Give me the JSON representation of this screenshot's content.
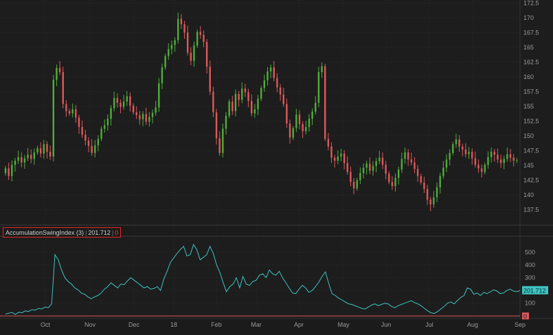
{
  "chart_data": [
    {
      "type": "candlestick",
      "title": "",
      "ylim": [
        135,
        173
      ],
      "yticks": [
        "137.5",
        "140",
        "142.5",
        "145",
        "147.5",
        "150",
        "152.5",
        "155",
        "157.5",
        "160",
        "162.5",
        "165",
        "167.5",
        "170",
        "172.5"
      ],
      "grid": true,
      "colors": {
        "up": "#4fae3a",
        "down": "#e0585b"
      },
      "close_series": [
        144.5,
        143.2,
        145.1,
        145.8,
        146.4,
        145.5,
        146.2,
        146.8,
        146.1,
        147.2,
        147.9,
        147.0,
        148.6,
        147.3,
        146.5,
        159.5,
        161.5,
        160.8,
        155.4,
        154.2,
        153.8,
        154.5,
        153.1,
        151.5,
        150.2,
        149.2,
        148.3,
        147.1,
        148.4,
        149.5,
        151.2,
        151.8,
        152.9,
        154.7,
        156.4,
        155.6,
        154.9,
        155.8,
        156.7,
        155.1,
        154.0,
        153.5,
        152.8,
        153.7,
        152.4,
        153.2,
        153.9,
        154.8,
        158.9,
        161.6,
        163.5,
        164.7,
        165.4,
        166.2,
        169.8,
        168.9,
        167.5,
        164.1,
        162.7,
        165.3,
        167.6,
        167.1,
        165.9,
        161.7,
        157.5,
        154.0,
        149.6,
        147.1,
        151.2,
        153.4,
        155.8,
        154.2,
        157.1,
        156.1,
        158.0,
        157.4,
        155.9,
        153.8,
        154.5,
        156.3,
        158.1,
        159.4,
        160.9,
        161.6,
        159.8,
        158.2,
        157.0,
        155.4,
        152.1,
        149.7,
        151.3,
        153.6,
        152.0,
        150.8,
        151.5,
        152.9,
        154.1,
        155.6,
        160.8,
        161.8,
        149.5,
        148.2,
        146.3,
        145.8,
        146.5,
        147.0,
        145.4,
        143.9,
        142.2,
        141.1,
        142.5,
        143.7,
        144.6,
        145.3,
        144.1,
        144.9,
        145.7,
        146.3,
        145.1,
        143.6,
        142.2,
        141.5,
        142.9,
        144.3,
        146.1,
        147.2,
        146.0,
        145.5,
        144.4,
        143.2,
        142.1,
        141.0,
        139.2,
        138.4,
        139.6,
        141.3,
        143.2,
        144.6,
        146.0,
        147.1,
        148.6,
        149.4,
        148.2,
        147.7,
        146.9,
        147.3,
        146.2,
        145.1,
        144.5,
        143.9,
        145.1,
        146.4,
        147.3,
        146.8,
        146.0,
        145.4,
        146.1,
        146.9,
        146.3,
        145.8,
        145.9
      ]
    },
    {
      "type": "line",
      "title": "AccumulationSwingIndex (3)",
      "ylim": [
        -20,
        620
      ],
      "yticks": [
        "100",
        "200",
        "300",
        "400",
        "500"
      ],
      "current_value": "201.712",
      "zero_line_label": "0",
      "line_color": "#3fc4c2",
      "zero_color": "#e0585b",
      "x_labels": [
        "Oct",
        "Nov",
        "Dec",
        "18",
        "Feb",
        "Mar",
        "Apr",
        "May",
        "Jun",
        "Jul",
        "Aug",
        "Sep"
      ],
      "values": [
        15,
        22,
        28,
        12,
        30,
        25,
        40,
        35,
        50,
        45,
        60,
        55,
        70,
        65,
        95,
        480,
        440,
        360,
        300,
        270,
        250,
        220,
        205,
        180,
        170,
        150,
        135,
        150,
        160,
        180,
        210,
        230,
        260,
        240,
        220,
        250,
        245,
        275,
        300,
        280,
        260,
        240,
        220,
        230,
        210,
        215,
        230,
        200,
        290,
        350,
        420,
        455,
        490,
        520,
        545,
        470,
        480,
        560,
        520,
        440,
        460,
        480,
        545,
        490,
        400,
        340,
        260,
        190,
        230,
        250,
        300,
        220,
        310,
        250,
        240,
        270,
        280,
        320,
        330,
        300,
        360,
        330,
        320,
        350,
        300,
        260,
        220,
        180,
        175,
        210,
        240,
        220,
        185,
        200,
        230,
        265,
        310,
        345,
        255,
        175,
        160,
        140,
        125,
        110,
        95,
        90,
        80,
        70,
        60,
        55,
        70,
        85,
        95,
        80,
        90,
        100,
        95,
        75,
        65,
        80,
        90,
        100,
        110,
        120,
        105,
        95,
        80,
        60,
        40,
        25,
        20,
        35,
        55,
        75,
        100,
        110,
        95,
        120,
        145,
        160,
        220,
        210,
        170,
        180,
        160,
        185,
        175,
        190,
        205,
        195,
        175,
        180,
        200,
        210,
        195,
        190,
        200
      ]
    }
  ],
  "study_label": {
    "name": "AccumulationSwingIndex (3)",
    "value": "201.712",
    "zero": "0"
  }
}
